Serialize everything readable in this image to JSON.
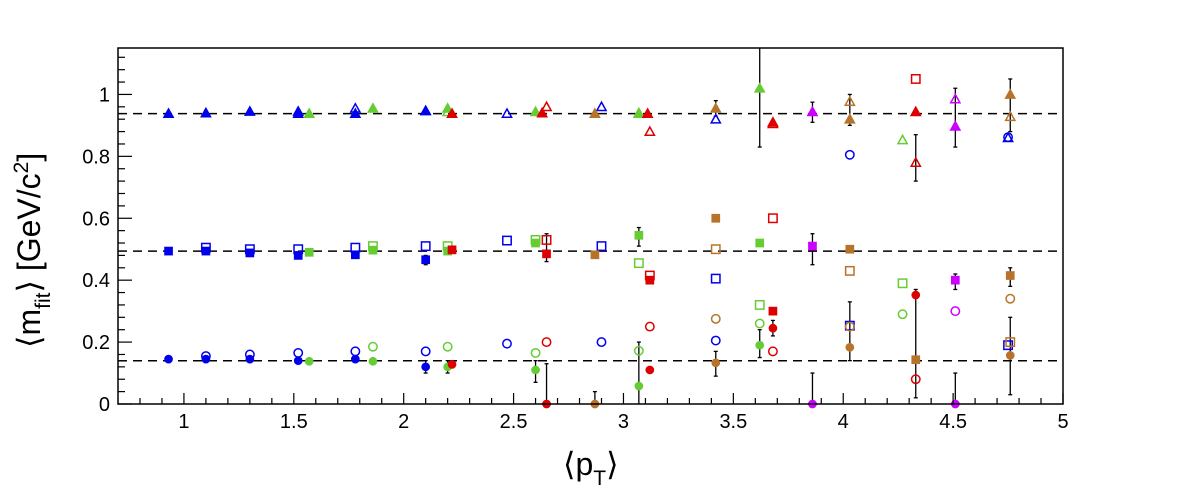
{
  "chart_data": {
    "type": "scatter",
    "xlabel": "⟨p_T⟩",
    "ylabel": "⟨m_fit⟩ [GeV/c²]",
    "xlim": [
      0.7,
      5.0
    ],
    "ylim": [
      0,
      1.15
    ],
    "x_ticks": [
      "1",
      "1.5",
      "2",
      "2.5",
      "3",
      "3.5",
      "4",
      "4.5",
      "5"
    ],
    "y_ticks": [
      "0",
      "0.2",
      "0.4",
      "0.6",
      "0.8",
      "1"
    ],
    "reference_lines": [
      0.938,
      0.494,
      0.1396
    ],
    "grid": false,
    "colors": {
      "blue": "#0000ee",
      "green": "#66cc33",
      "red": "#dd0000",
      "brown": "#b8732a",
      "purple": "#cc00ff"
    },
    "series": [
      {
        "color": "blue",
        "marker": "tri-filled",
        "points": [
          [
            0.93,
            0.938
          ],
          [
            1.1,
            0.94
          ],
          [
            1.3,
            0.945
          ],
          [
            1.52,
            0.938
          ],
          [
            1.78,
            0.938
          ],
          [
            2.1,
            0.947
          ]
        ]
      },
      {
        "color": "blue",
        "marker": "tri-open",
        "points": [
          [
            1.52,
            0.945
          ],
          [
            1.78,
            0.955
          ],
          [
            2.1,
            0.947
          ],
          [
            2.47,
            0.938
          ],
          [
            2.9,
            0.96
          ],
          [
            3.42,
            0.92
          ],
          [
            4.75,
            0.86
          ]
        ]
      },
      {
        "color": "green",
        "marker": "tri-filled",
        "points": [
          [
            1.57,
            0.938
          ],
          [
            1.86,
            0.955
          ],
          [
            2.2,
            0.955
          ],
          [
            2.6,
            0.944
          ],
          [
            3.07,
            0.938
          ],
          [
            3.62,
            1.02
          ]
        ]
      },
      {
        "color": "green",
        "marker": "tri-open",
        "points": [
          [
            2.2,
            0.944
          ],
          [
            3.07,
            0.94
          ],
          [
            4.27,
            0.853
          ]
        ]
      },
      {
        "color": "red",
        "marker": "tri-filled",
        "points": [
          [
            2.22,
            0.938
          ],
          [
            2.63,
            0.94
          ],
          [
            3.11,
            0.938
          ],
          [
            3.68,
            0.91
          ],
          [
            4.33,
            0.944
          ]
        ]
      },
      {
        "color": "red",
        "marker": "tri-open",
        "points": [
          [
            2.65,
            0.96
          ],
          [
            3.12,
            0.88
          ],
          [
            3.68,
            0.905
          ],
          [
            4.33,
            0.78
          ]
        ]
      },
      {
        "color": "brown",
        "marker": "tri-filled",
        "points": [
          [
            2.87,
            0.938
          ],
          [
            3.42,
            0.955
          ],
          [
            4.03,
            0.92
          ],
          [
            4.76,
            1.0
          ]
        ]
      },
      {
        "color": "brown",
        "marker": "tri-open",
        "points": [
          [
            4.03,
            0.977
          ],
          [
            4.76,
            0.928
          ]
        ]
      },
      {
        "color": "purple",
        "marker": "tri-filled",
        "points": [
          [
            3.86,
            0.944
          ],
          [
            4.51,
            0.897
          ]
        ]
      },
      {
        "color": "purple",
        "marker": "tri-open",
        "points": [
          [
            4.51,
            0.985
          ]
        ]
      },
      {
        "color": "blue",
        "marker": "circle-open",
        "points": [
          [
            1.1,
            0.155
          ],
          [
            1.3,
            0.16
          ],
          [
            1.52,
            0.165
          ],
          [
            1.78,
            0.17
          ],
          [
            2.1,
            0.17
          ],
          [
            2.47,
            0.195
          ],
          [
            2.9,
            0.2
          ],
          [
            3.42,
            0.205
          ],
          [
            4.03,
            0.805
          ],
          [
            4.75,
            0.862
          ]
        ]
      },
      {
        "color": "blue",
        "marker": "square-filled",
        "points": [
          [
            0.93,
            0.494
          ],
          [
            1.1,
            0.494
          ],
          [
            1.3,
            0.488
          ],
          [
            1.52,
            0.48
          ],
          [
            1.78,
            0.482
          ],
          [
            2.1,
            0.466
          ]
        ]
      },
      {
        "color": "blue",
        "marker": "square-open",
        "points": [
          [
            1.1,
            0.505
          ],
          [
            1.3,
            0.5
          ],
          [
            1.52,
            0.5
          ],
          [
            1.78,
            0.505
          ],
          [
            2.1,
            0.51
          ],
          [
            2.47,
            0.528
          ],
          [
            2.9,
            0.51
          ],
          [
            3.42,
            0.405
          ],
          [
            4.03,
            0.253
          ],
          [
            4.75,
            0.19
          ]
        ]
      },
      {
        "color": "blue",
        "marker": "circle-filled",
        "points": [
          [
            0.93,
            0.145
          ],
          [
            1.1,
            0.145
          ],
          [
            1.3,
            0.145
          ],
          [
            1.52,
            0.14
          ],
          [
            1.78,
            0.145
          ],
          [
            2.1,
            0.12
          ]
        ]
      },
      {
        "color": "green",
        "marker": "square-filled",
        "points": [
          [
            1.57,
            0.49
          ],
          [
            1.86,
            0.497
          ],
          [
            2.2,
            0.494
          ],
          [
            2.6,
            0.52
          ],
          [
            3.07,
            0.545
          ],
          [
            3.62,
            0.52
          ]
        ]
      },
      {
        "color": "green",
        "marker": "square-open",
        "points": [
          [
            1.86,
            0.51
          ],
          [
            2.2,
            0.51
          ],
          [
            2.6,
            0.53
          ],
          [
            3.07,
            0.455
          ],
          [
            3.62,
            0.32
          ],
          [
            4.27,
            0.39
          ]
        ]
      },
      {
        "color": "green",
        "marker": "circle-filled",
        "points": [
          [
            1.57,
            0.138
          ],
          [
            1.86,
            0.138
          ],
          [
            2.2,
            0.12
          ],
          [
            2.6,
            0.11
          ],
          [
            3.07,
            0.058
          ],
          [
            3.62,
            0.19
          ]
        ]
      },
      {
        "color": "green",
        "marker": "circle-open",
        "points": [
          [
            1.86,
            0.185
          ],
          [
            2.2,
            0.185
          ],
          [
            2.6,
            0.165
          ],
          [
            3.07,
            0.172
          ],
          [
            3.62,
            0.26
          ],
          [
            4.27,
            0.29
          ]
        ]
      },
      {
        "color": "red",
        "marker": "square-filled",
        "points": [
          [
            2.22,
            0.498
          ],
          [
            2.65,
            0.485
          ],
          [
            3.12,
            0.4
          ],
          [
            3.68,
            0.3
          ]
        ]
      },
      {
        "color": "red",
        "marker": "square-open",
        "points": [
          [
            2.65,
            0.53
          ],
          [
            3.12,
            0.415
          ],
          [
            3.68,
            0.6
          ],
          [
            4.33,
            1.05
          ]
        ]
      },
      {
        "color": "red",
        "marker": "circle-filled",
        "points": [
          [
            2.22,
            0.128
          ],
          [
            2.65,
            0.0
          ],
          [
            3.12,
            0.11
          ],
          [
            3.68,
            0.245
          ],
          [
            4.33,
            0.352
          ]
        ]
      },
      {
        "color": "red",
        "marker": "circle-open",
        "points": [
          [
            2.65,
            0.2
          ],
          [
            3.12,
            0.25
          ],
          [
            3.68,
            0.17
          ],
          [
            4.33,
            0.08
          ]
        ]
      },
      {
        "color": "brown",
        "marker": "square-filled",
        "points": [
          [
            2.87,
            0.482
          ],
          [
            3.42,
            0.6
          ],
          [
            4.03,
            0.5
          ],
          [
            4.76,
            0.415
          ],
          [
            4.33,
            0.143
          ]
        ]
      },
      {
        "color": "brown",
        "marker": "square-open",
        "points": [
          [
            3.42,
            0.5
          ],
          [
            4.03,
            0.43
          ],
          [
            4.76,
            0.2
          ]
        ]
      },
      {
        "color": "brown",
        "marker": "circle-filled",
        "points": [
          [
            2.87,
            0.0
          ],
          [
            3.42,
            0.133
          ],
          [
            4.03,
            0.183
          ],
          [
            4.76,
            0.157
          ]
        ]
      },
      {
        "color": "brown",
        "marker": "circle-open",
        "points": [
          [
            3.42,
            0.275
          ],
          [
            4.03,
            0.25
          ],
          [
            4.76,
            0.34
          ]
        ]
      },
      {
        "color": "purple",
        "marker": "square-filled",
        "points": [
          [
            3.86,
            0.51
          ],
          [
            4.51,
            0.4
          ]
        ]
      },
      {
        "color": "purple",
        "marker": "circle-filled",
        "points": [
          [
            3.86,
            0.0
          ],
          [
            4.51,
            0.0
          ]
        ]
      },
      {
        "color": "purple",
        "marker": "circle-open",
        "points": [
          [
            4.51,
            0.3
          ]
        ]
      }
    ],
    "error_bars": [
      [
        3.62,
        0.83,
        1.15
      ],
      [
        4.33,
        0.72,
        0.87
      ],
      [
        4.51,
        0.83,
        1.02
      ],
      [
        4.76,
        0.88,
        1.05
      ],
      [
        4.03,
        0.9,
        1.0
      ],
      [
        3.86,
        0.91,
        0.975
      ],
      [
        3.42,
        0.93,
        0.98
      ],
      [
        2.65,
        0.46,
        0.55
      ],
      [
        3.07,
        0.51,
        0.57
      ],
      [
        3.86,
        0.45,
        0.55
      ],
      [
        4.51,
        0.37,
        0.42
      ],
      [
        4.76,
        0.38,
        0.44
      ],
      [
        2.1,
        0.45,
        0.48
      ],
      [
        3.07,
        0.0,
        0.2
      ],
      [
        2.65,
        0.0,
        0.13
      ],
      [
        2.6,
        0.07,
        0.14
      ],
      [
        2.87,
        0.0,
        0.04
      ],
      [
        3.62,
        0.15,
        0.24
      ],
      [
        3.68,
        0.22,
        0.27
      ],
      [
        4.03,
        0.14,
        0.33
      ],
      [
        4.33,
        0.02,
        0.37
      ],
      [
        3.86,
        0.0,
        0.1
      ],
      [
        4.51,
        0.0,
        0.1
      ],
      [
        4.76,
        0.03,
        0.28
      ],
      [
        3.42,
        0.09,
        0.17
      ],
      [
        2.2,
        0.1,
        0.14
      ],
      [
        2.1,
        0.1,
        0.14
      ]
    ]
  }
}
